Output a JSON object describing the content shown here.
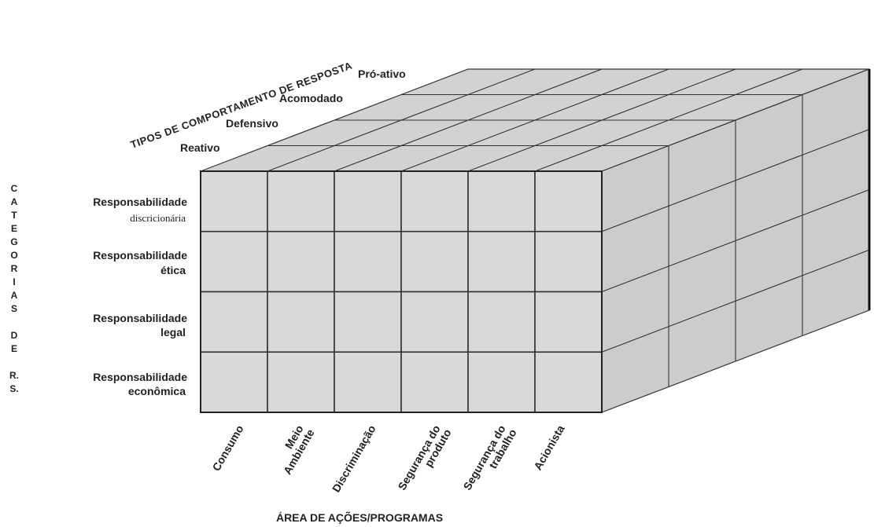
{
  "diagram": {
    "z_axis_title": "TIPOS DE COMPORTAMENTO DE RESPOSTA",
    "depth_layers": [
      "Reativo",
      "Defensivo",
      "Acomodado",
      "Pró-ativo"
    ],
    "y_axis_title_letters": [
      "C",
      "A",
      "T",
      "E",
      "G",
      "O",
      "R",
      "I",
      "A",
      "S",
      "",
      "D",
      "E",
      "",
      "R.",
      "S."
    ],
    "rows": [
      {
        "line1": "Responsabilidade",
        "line2": "discricionária"
      },
      {
        "line1": "Responsabilidade",
        "line2": "ética"
      },
      {
        "line1": "Responsabilidade",
        "line2": "legal"
      },
      {
        "line1": "Responsabilidade",
        "line2": "econômica"
      }
    ],
    "columns": [
      {
        "line1": "Consumo",
        "line2": ""
      },
      {
        "line1": "Meio",
        "line2": "Ambiente"
      },
      {
        "line1": "Discriminação",
        "line2": ""
      },
      {
        "line1": "Segurança do",
        "line2": "produto"
      },
      {
        "line1": "Segurança do",
        "line2": "trabalho"
      },
      {
        "line1": "Acionista",
        "line2": ""
      }
    ],
    "x_axis_title": "ÁREA DE AÇÕES/PROGRAMAS"
  }
}
